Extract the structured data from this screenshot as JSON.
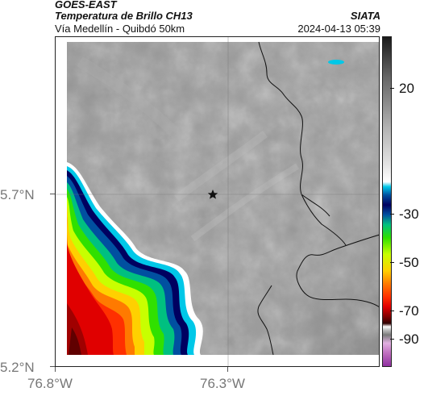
{
  "header": {
    "satellite": "GOES-EAST",
    "product": "Temperatura de Brillo CH13",
    "region": "Vía Medellín - Quibdó 50km",
    "agency": "SIATA",
    "timestamp": "2024-04-13 05:39"
  },
  "map": {
    "lat_ticks": [
      "5.7°N",
      "5.2°N"
    ],
    "lon_ticks": [
      "76.8°W",
      "76.3°W"
    ],
    "marker": "star-icon"
  },
  "colorbar": {
    "labels": [
      "20",
      "-30",
      "-50",
      "-70",
      "-90"
    ]
  },
  "colors": {
    "cold_cloud": [
      "#e00000",
      "#ff3000",
      "#ff7a00",
      "#ffd000",
      "#c8ff00",
      "#30e000",
      "#00c080",
      "#0050a0",
      "#000060",
      "#00c8e8"
    ],
    "clear_sky_gray": "#8a8a8a"
  }
}
